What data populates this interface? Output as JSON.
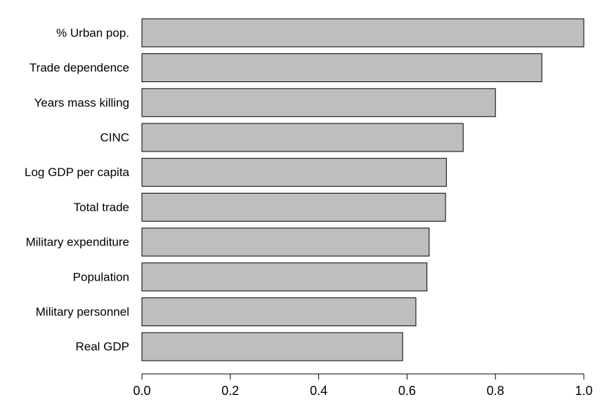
{
  "chart_data": {
    "type": "bar",
    "orientation": "horizontal",
    "categories": [
      "% Urban pop.",
      "Trade dependence",
      "Years mass killing",
      "CINC",
      "Log GDP per capita",
      "Total trade",
      "Military expenditure",
      "Population",
      "Military personnel",
      "Real GDP"
    ],
    "values": [
      1.0,
      0.905,
      0.8,
      0.727,
      0.689,
      0.687,
      0.65,
      0.645,
      0.62,
      0.59
    ],
    "xlim": [
      0,
      1
    ],
    "xticks": [
      0,
      0.2,
      0.4,
      0.6,
      0.8,
      1
    ],
    "xtick_labels": [
      "0.0",
      "0.2",
      "0.4",
      "0.6",
      "0.8",
      "1.0"
    ],
    "title": "",
    "xlabel": "",
    "ylabel": "",
    "grid": false,
    "bar_color": "#bebebe",
    "edge_color": "#000000"
  }
}
